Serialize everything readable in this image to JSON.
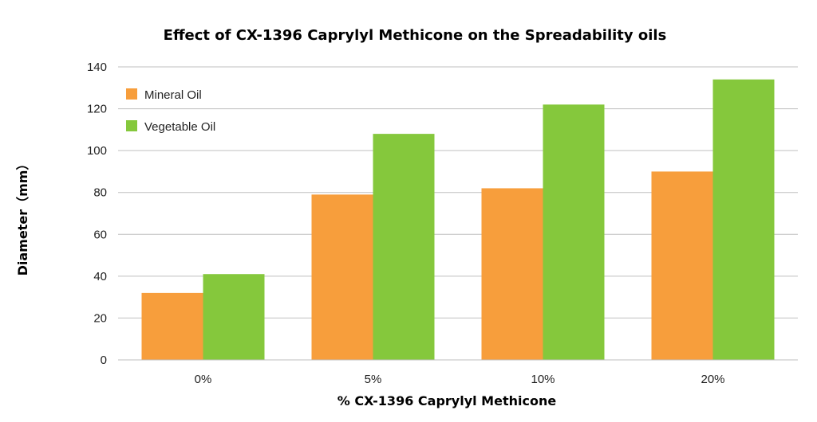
{
  "chart_data": {
    "type": "bar",
    "title": "Effect of CX-1396 Caprylyl Methicone on the Spreadability oils",
    "xlabel": "% CX-1396 Caprylyl Methicone",
    "ylabel": "Diameter（mm）",
    "categories": [
      "0%",
      "5%",
      "10%",
      "20%"
    ],
    "series": [
      {
        "name": "Mineral Oil",
        "color": "#f79e3c",
        "values": [
          32,
          79,
          82,
          90
        ]
      },
      {
        "name": "Vegetable Oil",
        "color": "#85c83c",
        "values": [
          41,
          108,
          122,
          134
        ]
      }
    ],
    "ylim": [
      0,
      140
    ],
    "yticks": [
      "0",
      "20",
      "40",
      "60",
      "80",
      "100",
      "120",
      "140"
    ],
    "grid": true,
    "legend_position": "top-left"
  }
}
